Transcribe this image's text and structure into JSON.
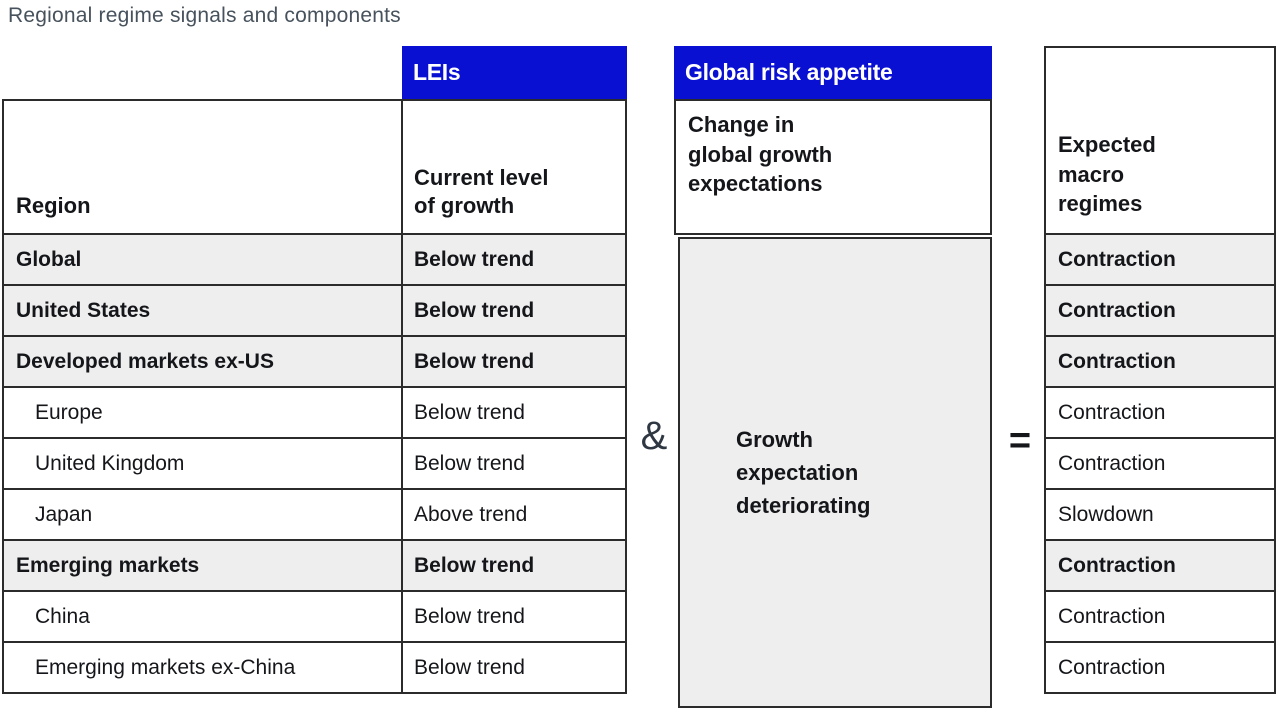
{
  "title": "Regional regime signals and components",
  "colors": {
    "header_blue": "#0a10d2",
    "row_gray": "#eeeeee",
    "border": "#2b2b2b",
    "title_text": "#47525c",
    "body_text": "#15161a"
  },
  "operators": {
    "and": "&",
    "equals": "="
  },
  "left_table": {
    "group_header": "LEIs",
    "region_header": "Region",
    "value_header": "Current level\nof growth",
    "rows": [
      {
        "region": "Global",
        "value": "Below trend",
        "emphasis": true
      },
      {
        "region": "United States",
        "value": "Below trend",
        "emphasis": true
      },
      {
        "region": "Developed markets ex-US",
        "value": "Below trend",
        "emphasis": true
      },
      {
        "region": "Europe",
        "value": "Below trend",
        "emphasis": false
      },
      {
        "region": "United Kingdom",
        "value": "Below trend",
        "emphasis": false
      },
      {
        "region": "Japan",
        "value": "Above trend",
        "emphasis": false
      },
      {
        "region": "Emerging markets",
        "value": "Below trend",
        "emphasis": true
      },
      {
        "region": "China",
        "value": "Below trend",
        "emphasis": false
      },
      {
        "region": "Emerging markets ex-China",
        "value": "Below trend",
        "emphasis": false
      }
    ]
  },
  "middle_panel": {
    "group_header": "Global risk appetite",
    "header": "Change in\nglobal growth\nexpectations",
    "value": "Growth\nexpectation\ndeteriorating"
  },
  "right_table": {
    "header": "Expected\nmacro\nregimes",
    "rows": [
      {
        "value": "Contraction",
        "emphasis": true
      },
      {
        "value": "Contraction",
        "emphasis": true
      },
      {
        "value": "Contraction",
        "emphasis": true
      },
      {
        "value": "Contraction",
        "emphasis": false
      },
      {
        "value": "Contraction",
        "emphasis": false
      },
      {
        "value": "Slowdown",
        "emphasis": false
      },
      {
        "value": "Contraction",
        "emphasis": true
      },
      {
        "value": "Contraction",
        "emphasis": false
      },
      {
        "value": "Contraction",
        "emphasis": false
      }
    ]
  },
  "chart_data": {
    "type": "table",
    "title": "Regional regime signals and components",
    "columns": [
      "Region",
      "Current level of growth (LEIs)",
      "Change in global growth expectations (Global risk appetite)",
      "Expected macro regimes"
    ],
    "rows": [
      [
        "Global",
        "Below trend",
        "Growth expectation deteriorating",
        "Contraction"
      ],
      [
        "United States",
        "Below trend",
        "Growth expectation deteriorating",
        "Contraction"
      ],
      [
        "Developed markets ex-US",
        "Below trend",
        "Growth expectation deteriorating",
        "Contraction"
      ],
      [
        "Europe",
        "Below trend",
        "Growth expectation deteriorating",
        "Contraction"
      ],
      [
        "United Kingdom",
        "Below trend",
        "Growth expectation deteriorating",
        "Contraction"
      ],
      [
        "Japan",
        "Above trend",
        "Growth expectation deteriorating",
        "Slowdown"
      ],
      [
        "Emerging markets",
        "Below trend",
        "Growth expectation deteriorating",
        "Contraction"
      ],
      [
        "China",
        "Below trend",
        "Growth expectation deteriorating",
        "Contraction"
      ],
      [
        "Emerging markets ex-China",
        "Below trend",
        "Growth expectation deteriorating",
        "Contraction"
      ]
    ],
    "notes": "LEIs & Global risk appetite = Expected macro regimes; bold/shaded rows: Global, United States, Developed markets ex-US, Emerging markets"
  }
}
